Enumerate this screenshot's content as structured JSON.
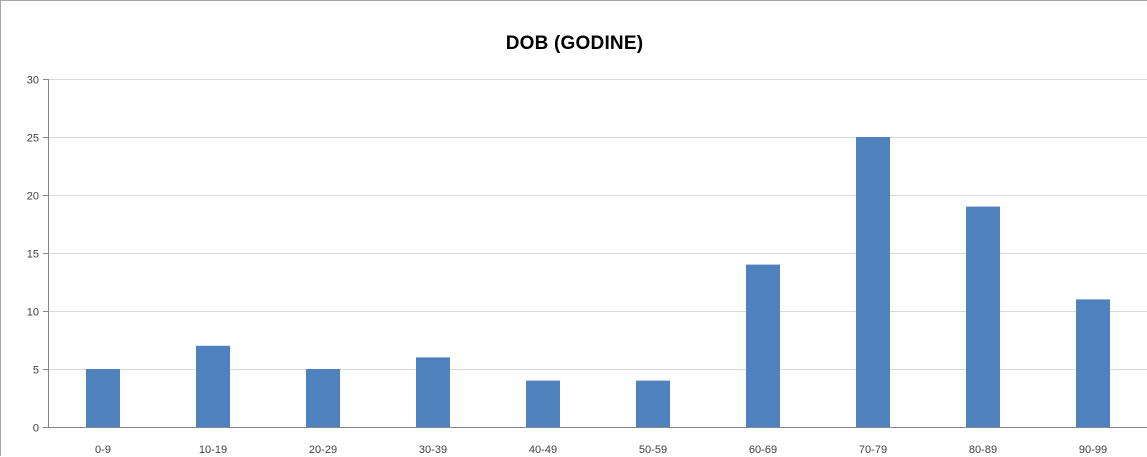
{
  "chart_data": {
    "type": "bar",
    "title": "DOB (GODINE)",
    "categories": [
      "0-9",
      "10-19",
      "20-29",
      "30-39",
      "40-49",
      "50-59",
      "60-69",
      "70-79",
      "80-89",
      "90-99"
    ],
    "values": [
      5,
      7,
      5,
      6,
      4,
      4,
      14,
      25,
      19,
      11
    ],
    "ylim": [
      0,
      30
    ],
    "yticks": [
      0,
      5,
      10,
      15,
      20,
      25,
      30
    ],
    "grid": true,
    "legend": "none",
    "colors": {
      "bar": "#4f81bd",
      "gridline": "#d9d9d9",
      "axis": "#868686"
    }
  }
}
